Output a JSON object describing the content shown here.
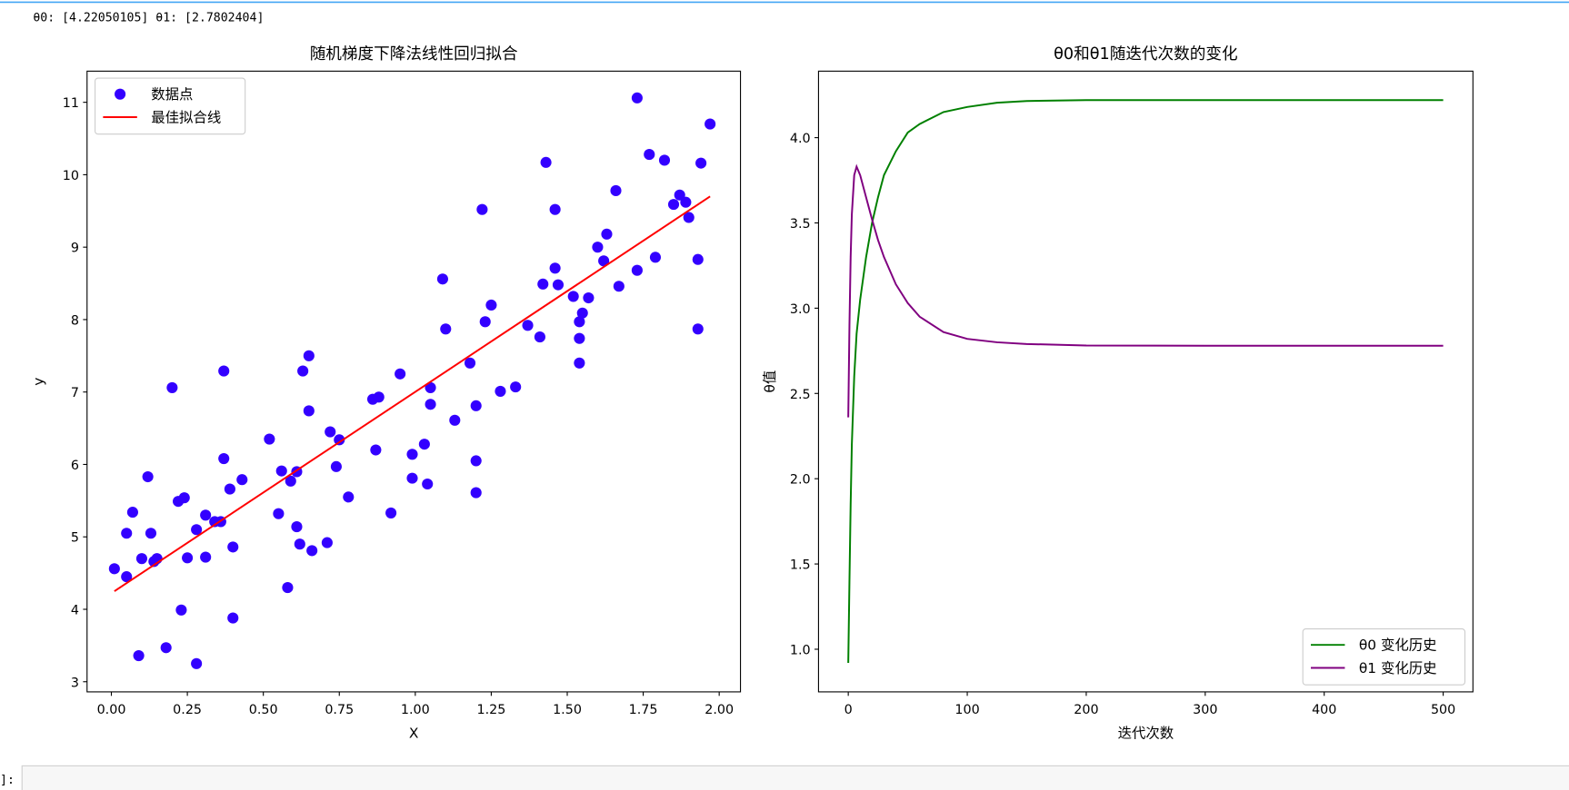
{
  "output_text": "θ0: [4.22050105] θ1: [2.7802404]",
  "next_cell_prompt": "]:",
  "chart_data": [
    {
      "type": "scatter",
      "title": "随机梯度下降法线性回归拟合",
      "x_label": "X",
      "y_label": "y",
      "xlim": [
        -0.08,
        2.07
      ],
      "ylim": [
        2.86,
        11.43
      ],
      "xticks": [
        {
          "value": 0,
          "label": "0.00"
        },
        {
          "value": 0.25,
          "label": "0.25"
        },
        {
          "value": 0.5,
          "label": "0.50"
        },
        {
          "value": 0.75,
          "label": "0.75"
        },
        {
          "value": 1,
          "label": "1.00"
        },
        {
          "value": 1.25,
          "label": "1.25"
        },
        {
          "value": 1.5,
          "label": "1.50"
        },
        {
          "value": 1.75,
          "label": "1.75"
        },
        {
          "value": 2,
          "label": "2.00"
        }
      ],
      "yticks": [
        3,
        4,
        5,
        6,
        7,
        8,
        9,
        10,
        11
      ],
      "legend": "upper left",
      "series": [
        {
          "name": "数据点",
          "mode": "markers",
          "color": "#3300ff",
          "x": [
            0.01,
            0.05,
            0.05,
            0.07,
            0.1,
            0.09,
            0.12,
            0.13,
            0.14,
            0.15,
            0.2,
            0.18,
            0.22,
            0.24,
            0.23,
            0.25,
            0.28,
            0.28,
            0.31,
            0.31,
            0.34,
            0.36,
            0.37,
            0.37,
            0.39,
            0.4,
            0.4,
            0.43,
            0.52,
            0.55,
            0.56,
            0.58,
            0.59,
            0.61,
            0.61,
            0.62,
            0.63,
            0.65,
            0.65,
            0.66,
            0.71,
            0.72,
            0.74,
            0.75,
            0.78,
            0.86,
            0.87,
            0.88,
            0.92,
            0.95,
            0.99,
            0.99,
            1.03,
            1.04,
            1.05,
            1.05,
            1.09,
            1.1,
            1.13,
            1.18,
            1.2,
            1.2,
            1.2,
            1.22,
            1.23,
            1.25,
            1.28,
            1.33,
            1.37,
            1.41,
            1.42,
            1.43,
            1.46,
            1.46,
            1.47,
            1.52,
            1.54,
            1.54,
            1.54,
            1.55,
            1.57,
            1.6,
            1.62,
            1.63,
            1.66,
            1.67,
            1.73,
            1.73,
            1.77,
            1.79,
            1.82,
            1.85,
            1.87,
            1.89,
            1.9,
            1.93,
            1.93,
            1.94,
            1.97
          ],
          "values": [
            4.56,
            4.45,
            5.05,
            5.34,
            4.7,
            3.36,
            5.83,
            5.05,
            4.66,
            4.7,
            7.06,
            3.47,
            5.49,
            5.54,
            3.99,
            4.71,
            5.1,
            3.25,
            5.3,
            4.72,
            5.21,
            5.21,
            6.08,
            7.29,
            5.66,
            4.86,
            3.88,
            5.79,
            6.35,
            5.32,
            5.91,
            4.3,
            5.77,
            5.9,
            5.14,
            4.9,
            7.29,
            6.74,
            7.5,
            4.81,
            4.92,
            6.45,
            5.97,
            6.34,
            5.55,
            6.9,
            6.2,
            6.93,
            5.33,
            7.25,
            6.14,
            5.81,
            6.28,
            5.73,
            7.06,
            6.83,
            8.56,
            7.87,
            6.61,
            7.4,
            6.05,
            5.61,
            6.81,
            9.52,
            7.97,
            8.2,
            7.01,
            7.07,
            7.92,
            7.76,
            8.49,
            10.17,
            8.71,
            9.52,
            8.48,
            8.32,
            7.97,
            7.74,
            7.4,
            8.09,
            8.3,
            9.0,
            8.81,
            9.18,
            9.78,
            8.46,
            11.06,
            8.68,
            10.28,
            8.86,
            10.2,
            9.59,
            9.72,
            9.62,
            9.41,
            7.87,
            8.83,
            10.16,
            10.7
          ]
        },
        {
          "name": "最佳拟合线",
          "mode": "lines",
          "color": "#ff0000",
          "x": [
            0.01,
            1.97
          ],
          "values": [
            4.25,
            9.7
          ]
        }
      ]
    },
    {
      "type": "line",
      "title": "θ0和θ1随迭代次数的变化",
      "x_label": "迭代次数",
      "y_label": "θ值",
      "xlim": [
        -25,
        525
      ],
      "ylim": [
        0.75,
        4.39
      ],
      "xticks": [
        0,
        100,
        200,
        300,
        400,
        500
      ],
      "yticks": [
        {
          "value": 1,
          "label": "1.0"
        },
        1.5,
        {
          "value": 2,
          "label": "2.0"
        },
        2.5,
        {
          "value": 3,
          "label": "3.0"
        },
        3.5,
        {
          "value": 4,
          "label": "4.0"
        }
      ],
      "legend": "lower right",
      "x": [
        0,
        1,
        2,
        3,
        5,
        7,
        10,
        15,
        20,
        25,
        30,
        40,
        50,
        60,
        80,
        100,
        125,
        150,
        200,
        300,
        400,
        500
      ],
      "series": [
        {
          "name": "θ0 变化历史",
          "color": "#008000",
          "values": [
            0.92,
            1.4,
            1.85,
            2.2,
            2.6,
            2.85,
            3.05,
            3.3,
            3.5,
            3.65,
            3.78,
            3.92,
            4.03,
            4.08,
            4.15,
            4.18,
            4.205,
            4.215,
            4.22,
            4.22,
            4.22,
            4.22
          ]
        },
        {
          "name": "θ1 变化历史",
          "color": "#800080",
          "values": [
            2.36,
            2.9,
            3.3,
            3.55,
            3.78,
            3.83,
            3.78,
            3.65,
            3.52,
            3.4,
            3.3,
            3.14,
            3.03,
            2.95,
            2.86,
            2.82,
            2.8,
            2.79,
            2.781,
            2.78,
            2.78,
            2.78
          ]
        }
      ]
    }
  ]
}
